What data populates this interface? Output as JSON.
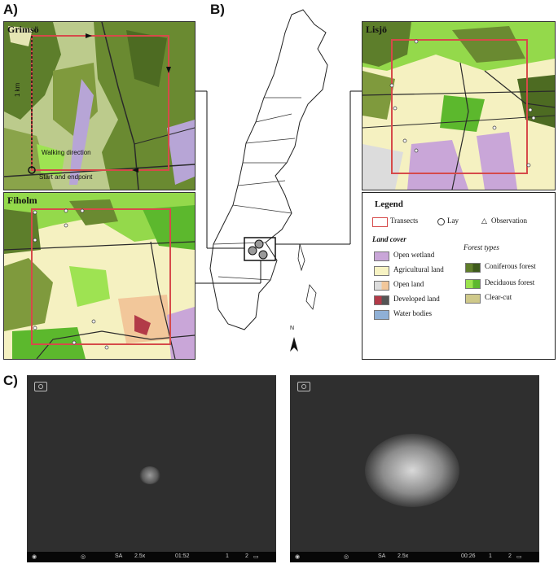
{
  "panels": {
    "a": "A)",
    "b": "B)",
    "c": "C)"
  },
  "maps": {
    "grimso": {
      "title": "Grimsö",
      "scale_label": "1 km",
      "walking_label": "Walking direction",
      "start_label": "Start and endpoint"
    },
    "fiholm": {
      "title": "Fiholm"
    },
    "lisjo": {
      "title": "Lisjö"
    }
  },
  "sweden": {
    "north_label": "N"
  },
  "legend": {
    "title": "Legend",
    "transects": "Transects",
    "lay": "Lay",
    "observation": "Observation",
    "land_cover_title": "Land cover",
    "forest_types_title": "Forest types",
    "land_cover": [
      {
        "label": "Open wetland",
        "color": "#c9a6d8"
      },
      {
        "label": "Agricultural land",
        "color": "#f7f3c3"
      },
      {
        "label": "Open land",
        "color": "#dcdcdc",
        "color2": "#f2c79a"
      },
      {
        "label": "Developed land",
        "color": "#b23a48",
        "color2": "#555555"
      },
      {
        "label": "Water bodies",
        "color": "#8fb0d6"
      }
    ],
    "forest_types": [
      {
        "label": "Coniferous forest",
        "color": "#5f7d2a",
        "color2": "#3e5a1c"
      },
      {
        "label": "Deciduous forest",
        "color": "#9be34e",
        "color2": "#5cb82d"
      },
      {
        "label": "Clear-cut",
        "color": "#cfc98a"
      }
    ],
    "transect_color": "#d64a4a"
  },
  "camera": {
    "left": {
      "mode": "SA",
      "zoom": "2.5x",
      "time": "01:52",
      "scale": "1",
      "scale2": "2"
    },
    "right": {
      "mode": "SA",
      "zoom": "2.5x",
      "time": "00:26",
      "scale": "1",
      "scale2": "2"
    }
  }
}
